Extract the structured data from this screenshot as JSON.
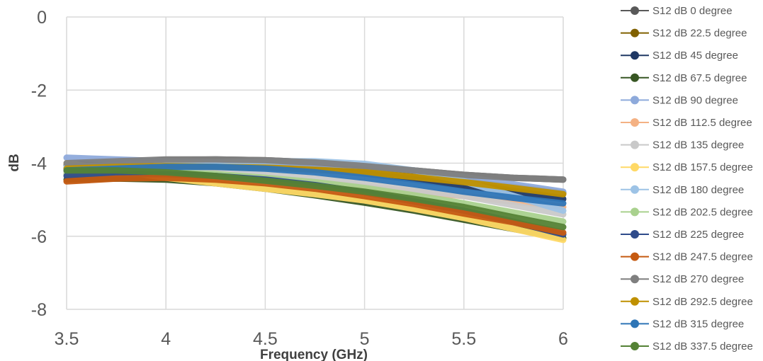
{
  "chart_data": {
    "type": "line",
    "title": "",
    "xlabel": "Frequency (GHz)",
    "ylabel": "dB",
    "xlim": [
      3.5,
      6
    ],
    "ylim": [
      -8,
      0
    ],
    "x_ticks": [
      3.5,
      4,
      4.5,
      5,
      5.5,
      6
    ],
    "y_ticks": [
      0,
      -2,
      -4,
      -6,
      -8
    ],
    "x_tick_labels": [
      "3.5",
      "4",
      "4.5",
      "5",
      "5.5",
      "6"
    ],
    "y_tick_labels": [
      "0",
      "-2",
      "-4",
      "-6",
      "-8"
    ],
    "grid": "vertical-and-horizontal",
    "legend_position": "right",
    "x": [
      3.5,
      3.75,
      4,
      4.25,
      4.5,
      4.75,
      5,
      5.25,
      5.5,
      5.75,
      6
    ],
    "series": [
      {
        "name": "S12 dB 0 degree",
        "color": "#595959",
        "values": [
          -4.05,
          -3.98,
          -3.92,
          -3.9,
          -3.92,
          -3.98,
          -4.08,
          -4.2,
          -4.32,
          -4.4,
          -4.45
        ]
      },
      {
        "name": "S12 dB 22.5 degree",
        "color": "#806000",
        "values": [
          -4.2,
          -4.12,
          -4.05,
          -4.02,
          -4.02,
          -4.05,
          -4.15,
          -4.3,
          -4.48,
          -4.65,
          -4.82
        ]
      },
      {
        "name": "S12 dB 45 degree",
        "color": "#1f3864",
        "values": [
          -4.15,
          -4.1,
          -4.05,
          -4.05,
          -4.08,
          -4.15,
          -4.28,
          -4.45,
          -4.62,
          -4.8,
          -4.98
        ]
      },
      {
        "name": "S12 dB 67.5 degree",
        "color": "#375623",
        "values": [
          -4.45,
          -4.42,
          -4.45,
          -4.55,
          -4.7,
          -4.88,
          -5.08,
          -5.3,
          -5.55,
          -5.8,
          -6.05
        ]
      },
      {
        "name": "S12 dB 90 degree",
        "color": "#8eaadb",
        "values": [
          -3.85,
          -3.9,
          -3.95,
          -3.98,
          -4.0,
          -4.02,
          -4.08,
          -4.2,
          -4.38,
          -4.58,
          -4.78
        ]
      },
      {
        "name": "S12 dB 112.5 degree",
        "color": "#f4b183",
        "values": [
          -4.3,
          -4.28,
          -4.3,
          -4.35,
          -4.42,
          -4.52,
          -4.65,
          -4.78,
          -4.9,
          -5.05,
          -5.2
        ]
      },
      {
        "name": "S12 dB 135 degree",
        "color": "#c9c9c9",
        "values": [
          -4.25,
          -4.22,
          -4.22,
          -4.25,
          -4.32,
          -4.42,
          -4.55,
          -4.72,
          -4.9,
          -5.15,
          -5.4
        ]
      },
      {
        "name": "S12 dB 157.5 degree",
        "color": "#ffd966",
        "values": [
          -4.0,
          -4.2,
          -4.4,
          -4.55,
          -4.7,
          -4.85,
          -5.02,
          -5.25,
          -5.5,
          -5.8,
          -6.1
        ]
      },
      {
        "name": "S12 dB 180 degree",
        "color": "#9dc3e6",
        "values": [
          -4.1,
          -4.05,
          -4.0,
          -3.98,
          -3.95,
          -3.95,
          -4.02,
          -4.2,
          -4.5,
          -4.9,
          -5.3
        ]
      },
      {
        "name": "S12 dB 202.5 degree",
        "color": "#a9d18e",
        "values": [
          -4.3,
          -4.25,
          -4.25,
          -4.3,
          -4.4,
          -4.52,
          -4.68,
          -4.88,
          -5.1,
          -5.35,
          -5.6
        ]
      },
      {
        "name": "S12 dB 225 degree",
        "color": "#2f4b8a",
        "values": [
          -4.35,
          -4.3,
          -4.3,
          -4.35,
          -4.45,
          -4.6,
          -4.8,
          -5.05,
          -5.3,
          -5.6,
          -5.95
        ]
      },
      {
        "name": "S12 dB 247.5 degree",
        "color": "#c55a11",
        "values": [
          -4.5,
          -4.42,
          -4.4,
          -4.45,
          -4.55,
          -4.7,
          -4.9,
          -5.12,
          -5.38,
          -5.62,
          -5.9
        ]
      },
      {
        "name": "S12 dB 270 degree",
        "color": "#7f7f7f",
        "values": [
          -4.0,
          -3.95,
          -3.9,
          -3.9,
          -3.92,
          -3.98,
          -4.08,
          -4.2,
          -4.32,
          -4.4,
          -4.45
        ]
      },
      {
        "name": "S12 dB 292.5 degree",
        "color": "#bf9000",
        "values": [
          -4.15,
          -4.1,
          -4.08,
          -4.1,
          -4.12,
          -4.18,
          -4.25,
          -4.38,
          -4.52,
          -4.68,
          -4.85
        ]
      },
      {
        "name": "S12 dB 315 degree",
        "color": "#2e75b6",
        "values": [
          -4.2,
          -4.15,
          -4.1,
          -4.1,
          -4.15,
          -4.25,
          -4.4,
          -4.58,
          -4.78,
          -4.95,
          -5.1
        ]
      },
      {
        "name": "S12 dB 337.5 degree",
        "color": "#548235",
        "values": [
          -4.2,
          -4.2,
          -4.25,
          -4.35,
          -4.48,
          -4.62,
          -4.78,
          -4.98,
          -5.2,
          -5.48,
          -5.75
        ]
      }
    ]
  }
}
